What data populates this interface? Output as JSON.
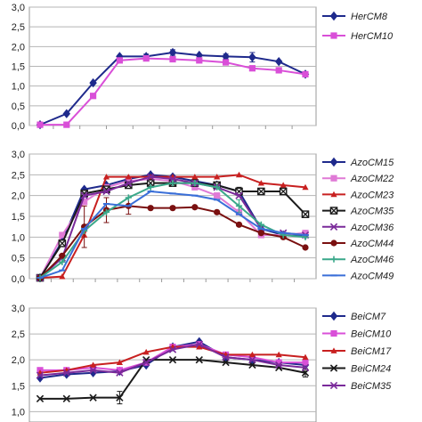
{
  "chart_data": [
    {
      "type": "line",
      "x": [
        1,
        2,
        3,
        4,
        5,
        6,
        7,
        8,
        9,
        10,
        11
      ],
      "ylim": [
        0,
        3.0
      ],
      "yticks": [
        "0,0",
        "0,5",
        "1,0",
        "1,5",
        "2,0",
        "2,5",
        "3,0"
      ],
      "grid": true,
      "legend": "right",
      "series": [
        {
          "name": "HerCM8",
          "color": "#1f2a8c",
          "marker": "diamond",
          "values": [
            0.02,
            0.3,
            1.08,
            1.75,
            1.75,
            1.85,
            1.78,
            1.75,
            1.73,
            1.62,
            1.3
          ],
          "err": [
            0,
            0,
            0,
            0,
            0.06,
            0.07,
            0,
            0.06,
            0.12,
            0,
            0
          ]
        },
        {
          "name": "HerCM10",
          "color": "#d94fd8",
          "marker": "square",
          "values": [
            0.02,
            0.02,
            0.75,
            1.65,
            1.7,
            1.68,
            1.65,
            1.6,
            1.45,
            1.4,
            1.3
          ],
          "err": [
            0,
            0,
            0,
            0,
            0,
            0,
            0,
            0,
            0,
            0,
            0
          ]
        }
      ]
    },
    {
      "type": "line",
      "x": [
        1,
        2,
        3,
        4,
        5,
        6,
        7,
        8,
        9,
        10,
        11,
        12,
        13
      ],
      "ylim": [
        0,
        3.0
      ],
      "yticks": [
        "0,0",
        "0,5",
        "1,0",
        "1,5",
        "2,0",
        "2,5",
        "3,0"
      ],
      "grid": true,
      "legend": "right",
      "series": [
        {
          "name": "AzoCM15",
          "color": "#1f2a8c",
          "marker": "diamond",
          "values": [
            0.02,
            0.9,
            2.15,
            2.25,
            2.4,
            2.5,
            2.45,
            2.35,
            2.25,
            2.1,
            1.2,
            1.05,
            1.05
          ],
          "err": []
        },
        {
          "name": "AzoCM22",
          "color": "#e07ad6",
          "marker": "square",
          "values": [
            0.02,
            1.05,
            1.85,
            2.2,
            2.35,
            2.4,
            2.35,
            2.2,
            2.0,
            1.6,
            1.05,
            1.05,
            1.1
          ],
          "err": []
        },
        {
          "name": "AzoCM23",
          "color": "#c82020",
          "marker": "triangle",
          "values": [
            0.02,
            0.05,
            1.05,
            2.45,
            2.45,
            2.45,
            2.45,
            2.45,
            2.45,
            2.5,
            2.3,
            2.25,
            2.2
          ],
          "err": []
        },
        {
          "name": "AzoCM35",
          "color": "#1a1a1a",
          "marker": "xsquare",
          "values": [
            0.02,
            0.85,
            2.05,
            2.15,
            2.25,
            2.3,
            2.3,
            2.3,
            2.25,
            2.1,
            2.1,
            2.1,
            1.55
          ],
          "err": [
            0,
            0,
            0,
            0,
            0,
            0,
            0,
            0,
            0,
            0.1,
            0,
            0,
            0
          ]
        },
        {
          "name": "AzoCM36",
          "color": "#7a2a9a",
          "marker": "x",
          "values": [
            0.02,
            0.5,
            2.0,
            2.1,
            2.3,
            2.45,
            2.4,
            2.3,
            2.2,
            2.0,
            1.2,
            1.1,
            1.05
          ],
          "err": []
        },
        {
          "name": "AzoCM44",
          "color": "#7a1010",
          "marker": "circle",
          "values": [
            0.02,
            0.55,
            1.25,
            1.65,
            1.75,
            1.7,
            1.7,
            1.72,
            1.6,
            1.3,
            1.1,
            1.0,
            0.75
          ],
          "err": [
            0,
            0,
            0.5,
            0.3,
            0.2,
            0,
            0,
            0,
            0,
            0,
            0,
            0,
            0
          ]
        },
        {
          "name": "AzoCM46",
          "color": "#3aa88a",
          "marker": "plus",
          "values": [
            0.02,
            0.4,
            1.15,
            1.6,
            1.95,
            2.2,
            2.3,
            2.3,
            2.2,
            1.75,
            1.3,
            1.05,
            1.0
          ],
          "err": [
            0,
            0,
            0,
            0,
            0,
            0,
            0,
            0,
            0,
            0.15,
            0,
            0,
            0
          ]
        },
        {
          "name": "AzoCM49",
          "color": "#3a6fd8",
          "marker": "dash",
          "values": [
            0.02,
            0.2,
            1.2,
            1.8,
            1.75,
            2.1,
            2.05,
            2.0,
            1.9,
            1.55,
            1.2,
            1.1,
            1.05
          ],
          "err": []
        }
      ]
    },
    {
      "type": "line",
      "x": [
        1,
        2,
        3,
        4,
        5,
        6,
        7,
        8,
        9,
        10,
        11
      ],
      "ylim": [
        0.8,
        3.0
      ],
      "yticks": [
        "1,0",
        "1,5",
        "2,0",
        "2,5",
        "3,0"
      ],
      "grid": true,
      "legend": "right",
      "series": [
        {
          "name": "BeiCM7",
          "color": "#1f2a8c",
          "marker": "diamond",
          "values": [
            1.65,
            1.72,
            1.75,
            1.78,
            1.9,
            2.25,
            2.35,
            2.05,
            2.0,
            1.95,
            1.9
          ],
          "err": []
        },
        {
          "name": "BeiCM10",
          "color": "#d94fd8",
          "marker": "square",
          "values": [
            1.8,
            1.8,
            1.85,
            1.8,
            1.95,
            2.25,
            2.3,
            2.1,
            2.05,
            1.95,
            1.95
          ],
          "err": []
        },
        {
          "name": "BeiCM17",
          "color": "#c82020",
          "marker": "triangle",
          "values": [
            1.75,
            1.8,
            1.9,
            1.95,
            2.15,
            2.25,
            2.25,
            2.1,
            2.1,
            2.1,
            2.05
          ],
          "err": []
        },
        {
          "name": "BeiCM24",
          "color": "#1a1a1a",
          "marker": "x",
          "values": [
            1.25,
            1.25,
            1.27,
            1.27,
            2.0,
            2.0,
            2.0,
            1.95,
            1.9,
            1.85,
            1.75
          ],
          "err": [
            0,
            0,
            0,
            0.12,
            0,
            0,
            0,
            0,
            0,
            0,
            0.08
          ]
        },
        {
          "name": "BeiCM35",
          "color": "#7a2a9a",
          "marker": "x",
          "values": [
            1.7,
            1.75,
            1.8,
            1.75,
            1.95,
            2.2,
            2.3,
            2.05,
            2.0,
            1.9,
            1.85
          ],
          "err": []
        }
      ]
    }
  ]
}
